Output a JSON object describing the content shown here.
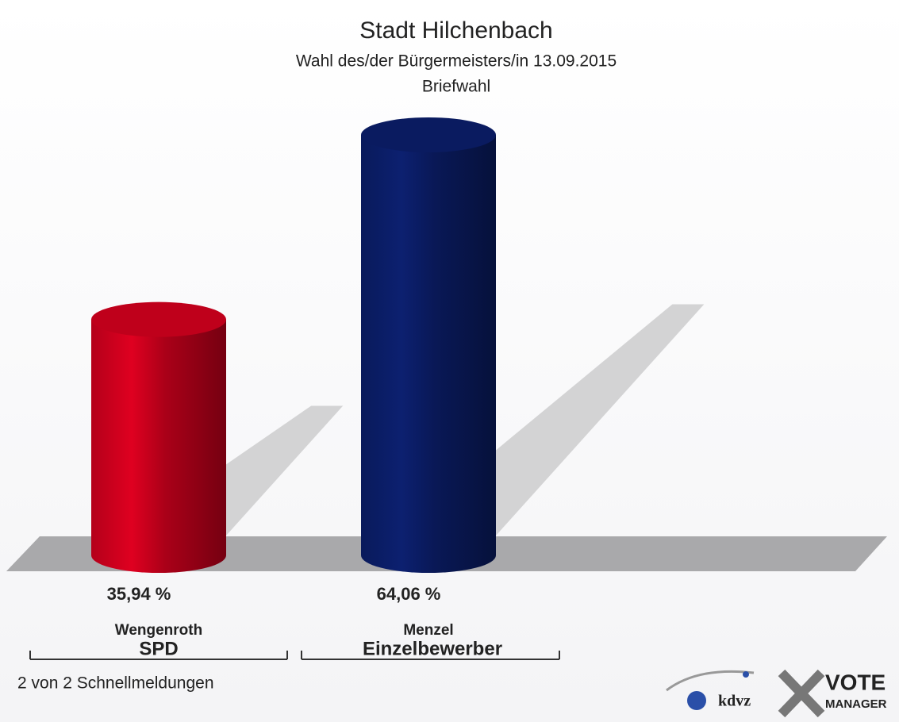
{
  "chart_data": {
    "type": "cylinder-bar",
    "title": "Stadt Hilchenbach",
    "subtitle": "Wahl des/der Bürgermeisters/in 13.09.2015",
    "subtitle2": "Briefwahl",
    "categories": [
      "Wengenroth",
      "Menzel"
    ],
    "parties": [
      "SPD",
      "Einzelbewerber"
    ],
    "values": [
      35.94,
      64.06
    ],
    "value_labels": [
      "35,94 %",
      "64,06 %"
    ],
    "colors": [
      "#d4001e",
      "#0b1e6b"
    ],
    "footnote": "2 von 2 Schnellmeldungen",
    "logo": {
      "left": "kdvz",
      "right": [
        "VOTE",
        "MANAGER"
      ]
    }
  }
}
